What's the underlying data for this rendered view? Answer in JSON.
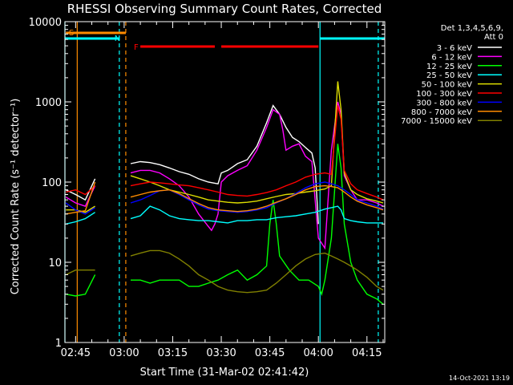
{
  "chart_data": {
    "type": "line",
    "title": "RHESSI Observing Summary Count Rates, Corrected",
    "xlabel": "Start Time (31-Mar-02 02:41:42)",
    "ylabel": "Corrected Count Rate (s⁻¹ detector⁻¹)",
    "y_scale": "log",
    "ylim": [
      1,
      10000
    ],
    "xlim_minutes": [
      161.7,
      260.5
    ],
    "x_ticks": [
      {
        "label": "02:45",
        "min": 165
      },
      {
        "label": "03:00",
        "min": 180
      },
      {
        "label": "03:15",
        "min": 195
      },
      {
        "label": "03:30",
        "min": 210
      },
      {
        "label": "03:45",
        "min": 225
      },
      {
        "label": "04:00",
        "min": 240
      },
      {
        "label": "04:15",
        "min": 255
      }
    ],
    "y_ticks": [
      {
        "label": "1",
        "v": 1
      },
      {
        "label": "10",
        "v": 10
      },
      {
        "label": "100",
        "v": 100
      },
      {
        "label": "1000",
        "v": 1000
      },
      {
        "label": "10000",
        "v": 10000
      }
    ],
    "legend_header": [
      "Det 1,3,4,5,6,9,",
      "Att 0"
    ],
    "legend_placement": "right",
    "flag_labels": {
      "saa": "S",
      "night": "N",
      "flare": "F"
    },
    "flags": {
      "saa": [
        [
          162,
          180.5
        ]
      ],
      "night": [
        [
          161.7,
          178.5
        ],
        [
          240.5,
          260.5
        ]
      ],
      "flare": [
        [
          185,
          208
        ],
        [
          210,
          240
        ]
      ]
    },
    "vlines_dashed": [
      {
        "min": 178.5,
        "color": "#00ffff"
      },
      {
        "min": 180.5,
        "color": "#ff8c00"
      },
      {
        "min": 258.5,
        "color": "#00ffff"
      }
    ],
    "vlines_solid": [
      {
        "min": 161.7,
        "color": "#00ffff"
      },
      {
        "min": 165.5,
        "color": "#ff8c00"
      },
      {
        "min": 240.5,
        "color": "#00ffff"
      }
    ],
    "data_gaps": [
      [
        172,
        181.5
      ]
    ],
    "series": [
      {
        "name": "3 - 6 keV",
        "color": "#ffffff",
        "x": [
          162,
          165,
          168,
          171,
          182,
          185,
          188,
          191,
          194,
          197,
          200,
          203,
          206,
          209,
          210,
          212,
          215,
          218,
          221,
          224,
          226,
          228,
          230,
          232,
          234,
          236,
          238,
          239,
          240
        ],
        "y": [
          80,
          70,
          60,
          110,
          170,
          180,
          175,
          165,
          150,
          135,
          125,
          110,
          100,
          95,
          130,
          140,
          170,
          190,
          280,
          550,
          900,
          700,
          480,
          360,
          320,
          270,
          230,
          150,
          30
        ]
      },
      {
        "name": "6 - 12 keV",
        "color": "#ff00ff",
        "x": [
          162,
          165,
          168,
          171,
          182,
          185,
          188,
          191,
          194,
          197,
          200,
          203,
          206,
          207,
          208,
          209,
          210,
          212,
          215,
          218,
          221,
          224,
          226,
          228,
          229,
          230,
          232,
          234,
          236,
          238,
          240,
          242,
          244,
          246,
          247,
          248,
          250,
          252,
          255,
          258,
          260
        ],
        "y": [
          65,
          55,
          50,
          90,
          130,
          140,
          140,
          130,
          110,
          90,
          65,
          40,
          28,
          25,
          30,
          40,
          100,
          120,
          140,
          160,
          250,
          480,
          800,
          700,
          450,
          250,
          280,
          300,
          210,
          180,
          20,
          15,
          250,
          1000,
          700,
          120,
          80,
          60,
          60,
          55,
          50
        ]
      },
      {
        "name": "12 - 25 keV",
        "color": "#00ff00",
        "x": [
          162,
          165,
          168,
          171,
          182,
          185,
          188,
          191,
          194,
          197,
          200,
          203,
          206,
          209,
          212,
          215,
          218,
          221,
          224,
          225,
          226,
          227,
          228,
          231,
          234,
          237,
          240,
          241,
          242,
          244,
          246,
          247,
          248,
          250,
          252,
          255,
          258,
          260
        ],
        "y": [
          4,
          3.8,
          4,
          7,
          6,
          6,
          5.5,
          6,
          6,
          6,
          5,
          5,
          5.5,
          6,
          7,
          8,
          6,
          7,
          9,
          30,
          60,
          30,
          12,
          8,
          6,
          6,
          5,
          4,
          6,
          20,
          300,
          150,
          30,
          10,
          6,
          4,
          3.5,
          3
        ]
      },
      {
        "name": "25 - 50 keV",
        "color": "#00ffff",
        "x": [
          162,
          165,
          168,
          171,
          182,
          185,
          188,
          191,
          194,
          197,
          200,
          203,
          206,
          209,
          212,
          215,
          218,
          221,
          224,
          227,
          230,
          233,
          236,
          239,
          242,
          244,
          246,
          247,
          248,
          250,
          252,
          255,
          258,
          260
        ],
        "y": [
          30,
          32,
          35,
          42,
          35,
          38,
          50,
          45,
          38,
          35,
          34,
          33,
          33,
          32,
          31,
          33,
          33,
          34,
          34,
          36,
          37,
          38,
          40,
          42,
          46,
          48,
          50,
          45,
          35,
          33,
          32,
          31,
          31,
          31
        ]
      },
      {
        "name": "50 - 100 keV",
        "color": "#dddd00",
        "x": [
          162,
          165,
          168,
          171,
          182,
          185,
          188,
          191,
          194,
          197,
          200,
          203,
          206,
          209,
          212,
          215,
          218,
          221,
          224,
          227,
          230,
          233,
          236,
          239,
          242,
          244,
          246,
          247,
          248,
          250,
          252,
          255,
          258,
          260
        ],
        "y": [
          45,
          45,
          42,
          50,
          120,
          110,
          100,
          90,
          80,
          75,
          70,
          65,
          60,
          58,
          56,
          55,
          56,
          58,
          62,
          66,
          70,
          72,
          75,
          78,
          82,
          90,
          1800,
          800,
          130,
          80,
          70,
          62,
          58,
          55
        ]
      },
      {
        "name": "100 - 300 keV",
        "color": "#ff0000",
        "x": [
          162,
          165,
          168,
          171,
          182,
          185,
          188,
          191,
          194,
          197,
          200,
          203,
          206,
          209,
          212,
          215,
          218,
          221,
          224,
          227,
          230,
          233,
          236,
          239,
          242,
          244,
          246,
          247,
          248,
          250,
          252,
          255,
          258,
          260
        ],
        "y": [
          75,
          80,
          70,
          90,
          90,
          95,
          100,
          98,
          95,
          92,
          90,
          85,
          80,
          75,
          70,
          68,
          67,
          70,
          74,
          80,
          90,
          100,
          115,
          125,
          130,
          125,
          900,
          600,
          140,
          95,
          80,
          72,
          65,
          60
        ]
      },
      {
        "name": "300 - 800 keV",
        "color": "#0000ff",
        "x": [
          162,
          165,
          168,
          171,
          182,
          185,
          188,
          191,
          194,
          197,
          200,
          203,
          206,
          209,
          212,
          215,
          218,
          221,
          224,
          227,
          230,
          233,
          236,
          239,
          242,
          244,
          246,
          247,
          248,
          250,
          252,
          255,
          258,
          260
        ],
        "y": [
          55,
          45,
          40,
          48,
          55,
          60,
          68,
          78,
          80,
          70,
          60,
          52,
          46,
          44,
          43,
          42,
          43,
          45,
          48,
          55,
          62,
          72,
          85,
          95,
          100,
          95,
          90,
          85,
          80,
          70,
          60,
          55,
          50,
          46
        ]
      },
      {
        "name": "800 - 7000 keV",
        "color": "#ff8c00",
        "x": [
          162,
          165,
          168,
          171,
          182,
          185,
          188,
          191,
          194,
          197,
          200,
          203,
          206,
          209,
          212,
          215,
          218,
          221,
          224,
          227,
          230,
          233,
          236,
          239,
          242,
          244,
          246,
          247,
          248,
          250,
          252,
          255,
          258,
          260
        ],
        "y": [
          40,
          42,
          44,
          100,
          65,
          70,
          75,
          78,
          80,
          72,
          62,
          54,
          48,
          45,
          44,
          43,
          44,
          46,
          50,
          56,
          62,
          70,
          80,
          88,
          90,
          88,
          85,
          80,
          75,
          65,
          58,
          52,
          48,
          45
        ]
      },
      {
        "name": "7000 - 15000 keV",
        "color": "#808000",
        "x": [
          162,
          165,
          168,
          171,
          182,
          185,
          188,
          191,
          194,
          197,
          200,
          203,
          206,
          209,
          212,
          215,
          218,
          221,
          224,
          227,
          230,
          233,
          236,
          239,
          242,
          244,
          246,
          248,
          250,
          252,
          255,
          258,
          260
        ],
        "y": [
          7,
          8,
          8,
          8,
          12,
          13,
          14,
          14,
          13,
          11,
          9,
          7,
          6,
          5,
          4.5,
          4.3,
          4.2,
          4.3,
          4.5,
          5.5,
          7,
          9,
          11,
          12.5,
          13,
          12,
          11,
          10,
          9,
          8,
          6.5,
          5,
          4.5
        ]
      }
    ]
  },
  "footer_date": "14-Oct-2021 13:19"
}
